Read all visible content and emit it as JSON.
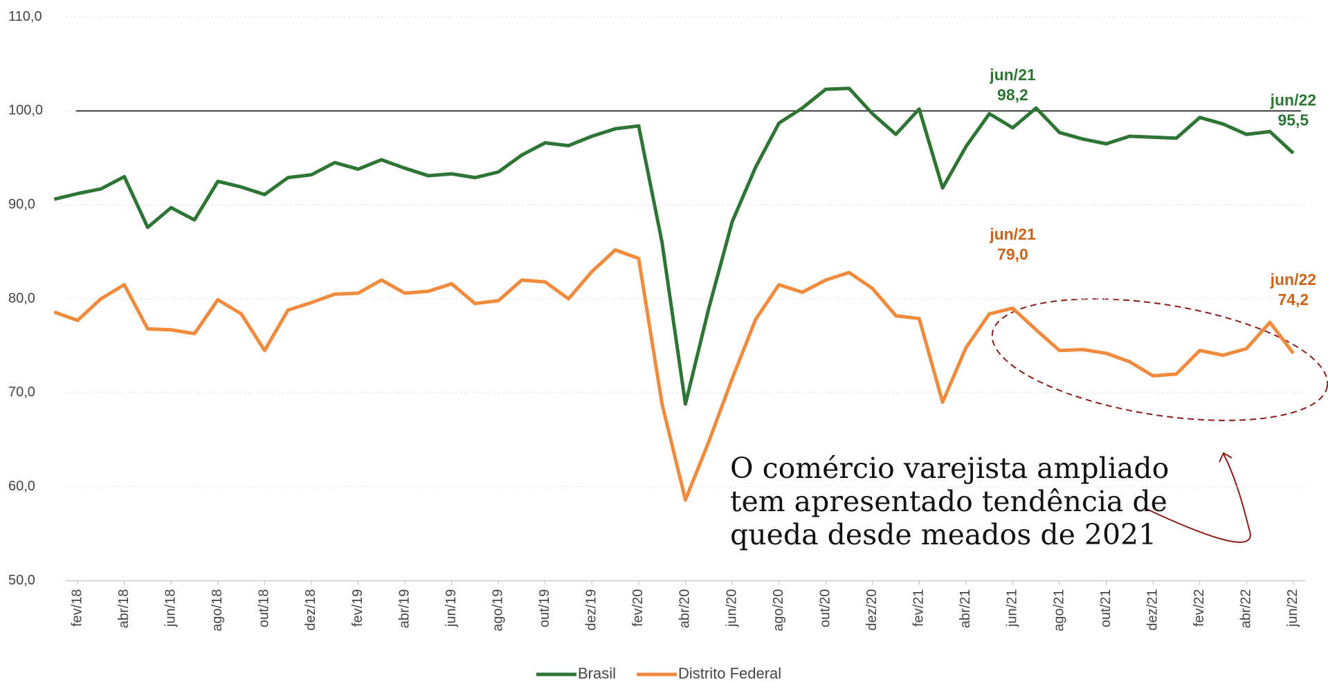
{
  "chart_data": {
    "type": "line",
    "categories": [
      null,
      "fev/18",
      null,
      "abr/18",
      null,
      "jun/18",
      null,
      "ago/18",
      null,
      "out/18",
      null,
      "dez/18",
      null,
      "fev/19",
      null,
      "abr/19",
      null,
      "jun/19",
      null,
      "ago/19",
      null,
      "out/19",
      null,
      "dez/19",
      null,
      "fev/20",
      null,
      "abr/20",
      null,
      "jun/20",
      null,
      "ago/20",
      null,
      "out/20",
      null,
      "dez/20",
      null,
      "fev/21",
      null,
      "abr/21",
      null,
      "jun/21",
      null,
      "ago/21",
      null,
      "out/21",
      null,
      "dez/21",
      null,
      "fev/22",
      null,
      "abr/22",
      null,
      "jun/22"
    ],
    "series": [
      {
        "name": "Brasil",
        "color": "#2e7535",
        "values": [
          90.6,
          91.2,
          91.7,
          93.0,
          87.6,
          89.7,
          88.4,
          92.5,
          91.9,
          91.1,
          92.9,
          93.2,
          94.5,
          93.8,
          94.8,
          93.9,
          93.1,
          93.3,
          92.9,
          93.5,
          95.3,
          96.6,
          96.3,
          97.3,
          98.1,
          98.4,
          86.0,
          68.8,
          79.0,
          88.2,
          94.0,
          98.7,
          100.3,
          102.3,
          102.4,
          99.7,
          97.5,
          100.2,
          91.8,
          96.2,
          99.7,
          98.2,
          100.3,
          97.7,
          97.0,
          96.5,
          97.3,
          97.2,
          97.1,
          99.3,
          98.6,
          97.5,
          97.8,
          95.5
        ]
      },
      {
        "name": "Distrito Federal",
        "color": "#f08a3c",
        "values": [
          78.6,
          77.7,
          80.0,
          81.5,
          76.8,
          76.7,
          76.3,
          79.9,
          78.4,
          74.5,
          78.8,
          79.6,
          80.5,
          80.6,
          82.0,
          80.6,
          80.8,
          81.6,
          79.5,
          79.8,
          82.0,
          81.8,
          80.0,
          82.9,
          85.2,
          84.3,
          68.8,
          58.6,
          64.8,
          71.5,
          77.8,
          81.5,
          80.7,
          82.0,
          82.8,
          81.1,
          78.2,
          77.9,
          69.0,
          74.8,
          78.4,
          79.0,
          76.7,
          74.5,
          74.6,
          74.2,
          73.3,
          71.8,
          72.0,
          74.5,
          74.0,
          74.7,
          77.5,
          74.2
        ]
      }
    ],
    "ylim": [
      50,
      110
    ],
    "yticks": [
      {
        "value": 50,
        "label": "50,0"
      },
      {
        "value": 60,
        "label": "60,0"
      },
      {
        "value": 70,
        "label": "70,0"
      },
      {
        "value": 80,
        "label": "80,0"
      },
      {
        "value": 90,
        "label": "90,0"
      },
      {
        "value": 100,
        "label": "100,0"
      },
      {
        "value": 110,
        "label": "110,0"
      }
    ],
    "grid": true,
    "reference_line": 100,
    "legend": "bottom",
    "annotations": [
      {
        "series": "Brasil",
        "x": "jun/21",
        "text": "98,2"
      },
      {
        "series": "Brasil",
        "x": "jun/22",
        "text": "95,5"
      },
      {
        "series": "Distrito Federal",
        "x": "jun/21",
        "text": "79,0"
      },
      {
        "series": "Distrito Federal",
        "x": "jun/22",
        "text": "74,2"
      }
    ],
    "note": "O comércio varejista ampliado tem apresentado tendência de queda desde meados de 2021"
  }
}
